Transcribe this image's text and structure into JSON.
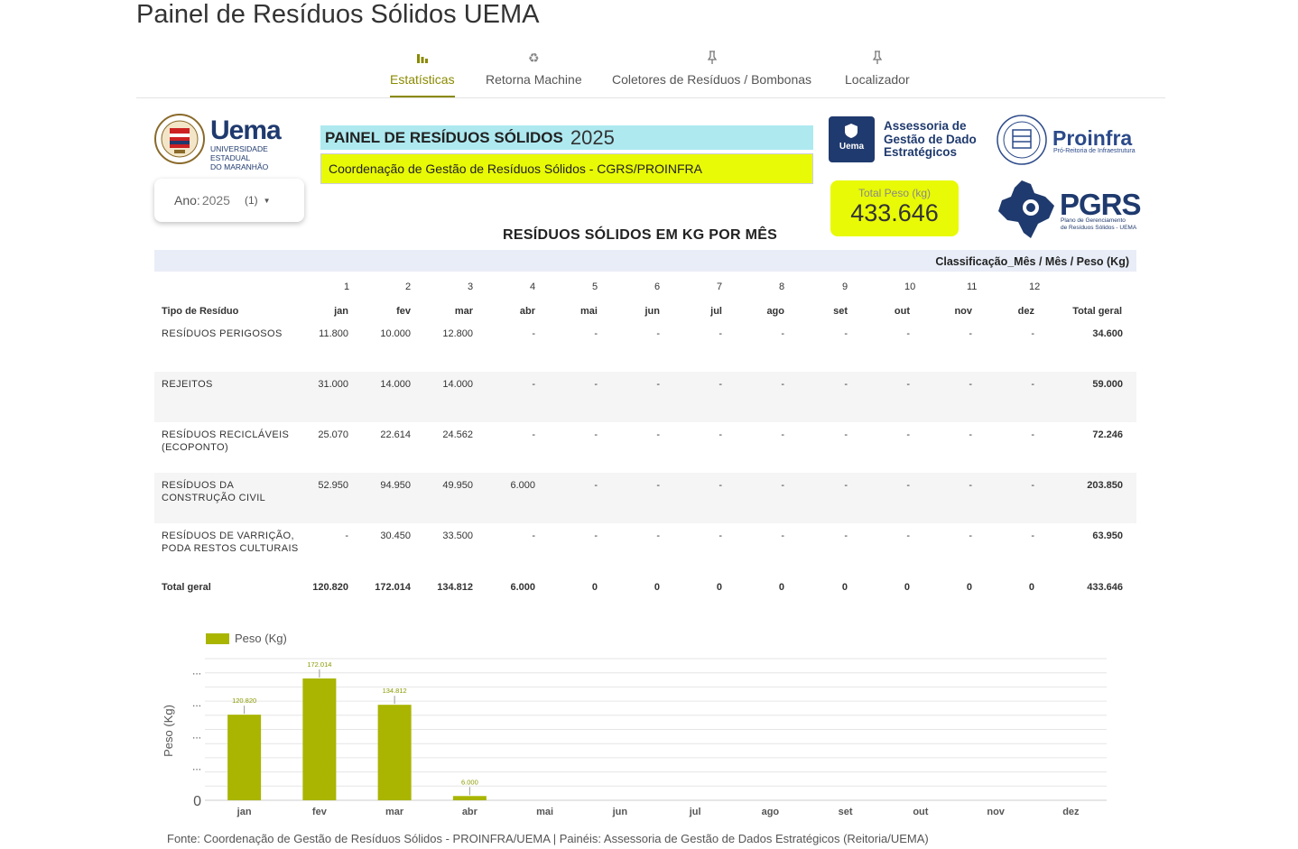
{
  "page_title": "Painel de Resíduos Sólidos UEMA",
  "tabs": [
    {
      "label": "Estatísticas",
      "icon": "bar-chart-icon",
      "active": true
    },
    {
      "label": "Retorna Machine",
      "icon": "recycle-icon",
      "active": false
    },
    {
      "label": "Coletores de Resíduos / Bombonas",
      "icon": "pin-icon",
      "active": false
    },
    {
      "label": "Localizador",
      "icon": "pin-icon",
      "active": false
    }
  ],
  "header": {
    "uema_word": "Uema",
    "uema_sub_1": "UNIVERSIDADE ESTADUAL",
    "uema_sub_2": "DO MARANHÃO",
    "banner_title": "PAINEL DE RESÍDUOS SÓLIDOS",
    "banner_year": "2025",
    "banner_subtitle": "Coordenação de Gestão de Resíduos Sólidos - CGRS/PROINFRA",
    "agde_box_label": "Uema",
    "agde_line1": "Assessoria de",
    "agde_line2": "Gestão de Dado",
    "agde_line3": "Estratégicos",
    "proinfra_word": "Proinfra",
    "proinfra_sub": "Pró-Reitoria de Infraestrutura",
    "pgrs_word": "PGRS",
    "pgrs_sub_1": "Plano de Gerenciamento",
    "pgrs_sub_2": "de Resíduos Sólidos - UEMA"
  },
  "filter": {
    "label": "Ano",
    "value": "2025",
    "count": "(1)"
  },
  "total_card": {
    "label": "Total Peso (kg)",
    "value": "433.646"
  },
  "table": {
    "title": "RESÍDUOS SÓLIDOS EM KG POR MÊS",
    "header": "Classificação_Mês / Mês / Peso (Kg)",
    "month_numbers": [
      "1",
      "2",
      "3",
      "4",
      "5",
      "6",
      "7",
      "8",
      "9",
      "10",
      "11",
      "12"
    ],
    "row_label_header": "Tipo de Resíduo",
    "months": [
      "jan",
      "fev",
      "mar",
      "abr",
      "mai",
      "jun",
      "jul",
      "ago",
      "set",
      "out",
      "nov",
      "dez"
    ],
    "total_header": "Total geral",
    "rows": [
      {
        "label": "RESÍDUOS PERIGOSOS",
        "values": [
          "11.800",
          "10.000",
          "12.800",
          "-",
          "-",
          "-",
          "-",
          "-",
          "-",
          "-",
          "-",
          "-"
        ],
        "total": "34.600"
      },
      {
        "label": "REJEITOS",
        "values": [
          "31.000",
          "14.000",
          "14.000",
          "-",
          "-",
          "-",
          "-",
          "-",
          "-",
          "-",
          "-",
          "-"
        ],
        "total": "59.000"
      },
      {
        "label": "RESÍDUOS RECICLÁVEIS (ECOPONTO)",
        "values": [
          "25.070",
          "22.614",
          "24.562",
          "-",
          "-",
          "-",
          "-",
          "-",
          "-",
          "-",
          "-",
          "-"
        ],
        "total": "72.246"
      },
      {
        "label": "RESÍDUOS DA CONSTRUÇÃO CIVIL",
        "values": [
          "52.950",
          "94.950",
          "49.950",
          "6.000",
          "-",
          "-",
          "-",
          "-",
          "-",
          "-",
          "-",
          "-"
        ],
        "total": "203.850"
      },
      {
        "label": "RESÍDUOS DE VARRIÇÃO, PODA RESTOS CULTURAIS",
        "values": [
          "-",
          "30.450",
          "33.500",
          "-",
          "-",
          "-",
          "-",
          "-",
          "-",
          "-",
          "-",
          "-"
        ],
        "total": "63.950"
      }
    ],
    "total_row": {
      "label": "Total geral",
      "values": [
        "120.820",
        "172.014",
        "134.812",
        "6.000",
        "0",
        "0",
        "0",
        "0",
        "0",
        "0",
        "0",
        "0"
      ],
      "total": "433.646"
    }
  },
  "chart_data": {
    "type": "bar",
    "categories": [
      "jan",
      "fev",
      "mar",
      "abr",
      "mai",
      "jun",
      "jul",
      "ago",
      "set",
      "out",
      "nov",
      "dez"
    ],
    "series": [
      {
        "name": "Peso (Kg)",
        "values": [
          120820,
          172014,
          134812,
          6000,
          0,
          0,
          0,
          0,
          0,
          0,
          0,
          0
        ]
      }
    ],
    "data_labels": [
      "120.820",
      "172.014",
      "134.812",
      "6.000",
      "",
      "",
      "",
      "",
      "",
      "",
      "",
      ""
    ],
    "ylabel": "Peso (Kg)",
    "ytick_zero": "0",
    "ytick_other": "...",
    "ylim": [
      0,
      200000
    ],
    "grid": true,
    "legend": "top-left",
    "color": "#a9b500"
  },
  "footer": "Fonte: Coordenação de Gestão de Resíduos Sólidos - PROINFRA/UEMA | Painéis: Assessoria de Gestão de Dados Estratégicos (Reitoria/UEMA)"
}
